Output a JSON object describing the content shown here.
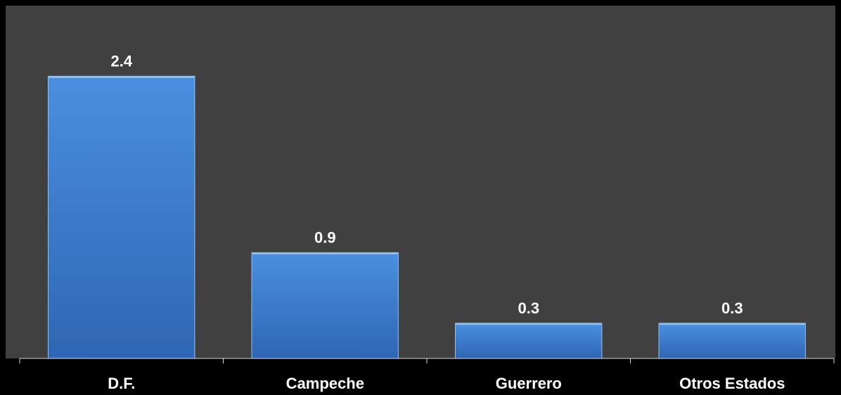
{
  "chart_data": {
    "type": "bar",
    "categories": [
      "D.F.",
      "Campeche",
      "Guerrero",
      "Otros Estados"
    ],
    "values": [
      2.4,
      0.9,
      0.3,
      0.3
    ],
    "data_labels": [
      "2.4",
      "0.9",
      "0.3",
      "0.3"
    ],
    "title": "",
    "xlabel": "",
    "ylabel": "",
    "ylim": [
      0,
      3.0
    ],
    "grid": false,
    "legend": "none",
    "colors": {
      "page_background": "#000000",
      "plot_background": "#404040",
      "bar_fill_top": "#4a8fe0",
      "bar_fill_bottom": "#2f66b3",
      "bar_edge": "#8fc1f5",
      "axis": "#d9d9d9",
      "text": "#ffffff"
    }
  }
}
